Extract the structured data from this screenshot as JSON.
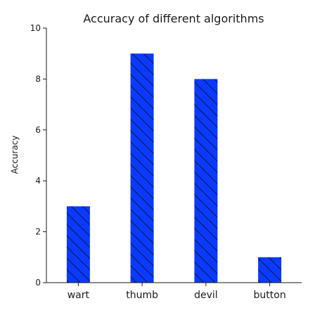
{
  "chart_data": {
    "type": "bar",
    "title": "Accuracy of different algorithms",
    "xlabel": "",
    "ylabel": "Accuracy",
    "categories": [
      "wart",
      "thumb",
      "devil",
      "button"
    ],
    "values": [
      3,
      9,
      8,
      1
    ],
    "ylim": [
      0,
      10
    ],
    "yticks": [
      "0",
      "2",
      "4",
      "6",
      "8",
      "10"
    ],
    "bar_color": "#0a3aff",
    "hatch": "diagonal",
    "grid": false,
    "legend": "none"
  }
}
